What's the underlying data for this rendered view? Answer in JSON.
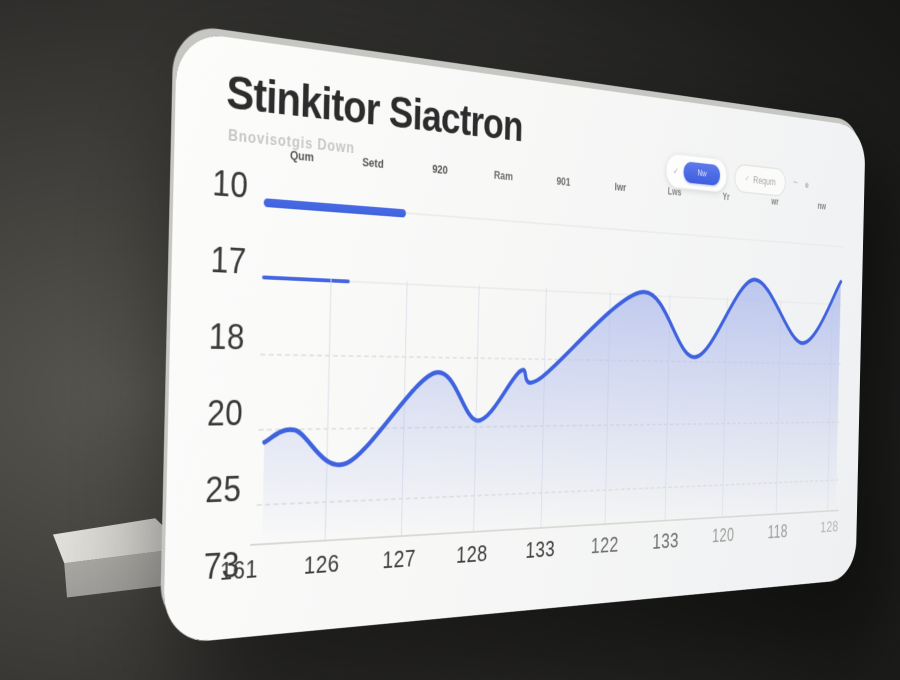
{
  "colors": {
    "accent_blue": "#3f63de",
    "area_fill": "#aebbec",
    "card_bg": "#f7f7f6",
    "background_dark": "#1d1d1c"
  },
  "header": {
    "title": "Stinkitor Siactron",
    "subtitle": "Bnovisotgis Down"
  },
  "toolbar": {
    "check_glyph": "✓",
    "primary_label": "Nw",
    "filter_label": "Requm",
    "tilde": "~"
  },
  "column_headers": [
    "Qum",
    "Setd",
    "920",
    "Ram",
    "901",
    "Iwr",
    "Lws",
    "Yr",
    "wr",
    "nw"
  ],
  "left_axis_rows": [
    {
      "label": "10",
      "type": "bar",
      "fill_pct": 20,
      "thickness": 9
    },
    {
      "label": "17",
      "type": "bar",
      "fill_pct": 12,
      "thickness": 4
    },
    {
      "label": "18",
      "type": "grid"
    },
    {
      "label": "20",
      "type": "grid"
    },
    {
      "label": "25",
      "type": "grid"
    },
    {
      "label": "73",
      "type": "footer"
    }
  ],
  "x_labels": [
    "161",
    "126",
    "127",
    "128",
    "133",
    "122",
    "133",
    "120",
    "118",
    "128"
  ],
  "chart_data": {
    "type": "area",
    "title": "Stinkitor Siactron",
    "categories": [
      "161",
      "126",
      "127",
      "128",
      "133",
      "122",
      "133",
      "120",
      "118",
      "128"
    ],
    "values_pct_of_max": [
      32,
      30,
      49,
      40,
      54,
      77,
      76,
      83,
      81,
      94
    ],
    "y_axis_labels": [
      "10",
      "17",
      "18",
      "20",
      "25",
      "73"
    ],
    "curve_keypoints_pct": [
      [
        0.8,
        66.9
      ],
      [
        4.9,
        63.1
      ],
      [
        12.2,
        74.4
      ],
      [
        24.9,
        43.8
      ],
      [
        31.8,
        60.6
      ],
      [
        38.5,
        42.8
      ],
      [
        41.7,
        45.6
      ],
      [
        59.4,
        12.2
      ],
      [
        69.7,
        36.6
      ],
      [
        81.0,
        5.0
      ],
      [
        91.5,
        30.0
      ],
      [
        99.6,
        3.8
      ]
    ],
    "grid_x_pct": [
      9.4,
      20.4,
      31.5,
      42.5,
      53.6,
      64.6,
      75.7,
      86.7,
      97.8
    ],
    "xlabel": "",
    "ylabel": "",
    "grid": "on",
    "legend": "none",
    "line_color": "#3f63de",
    "fill_color": "#aebbec"
  }
}
